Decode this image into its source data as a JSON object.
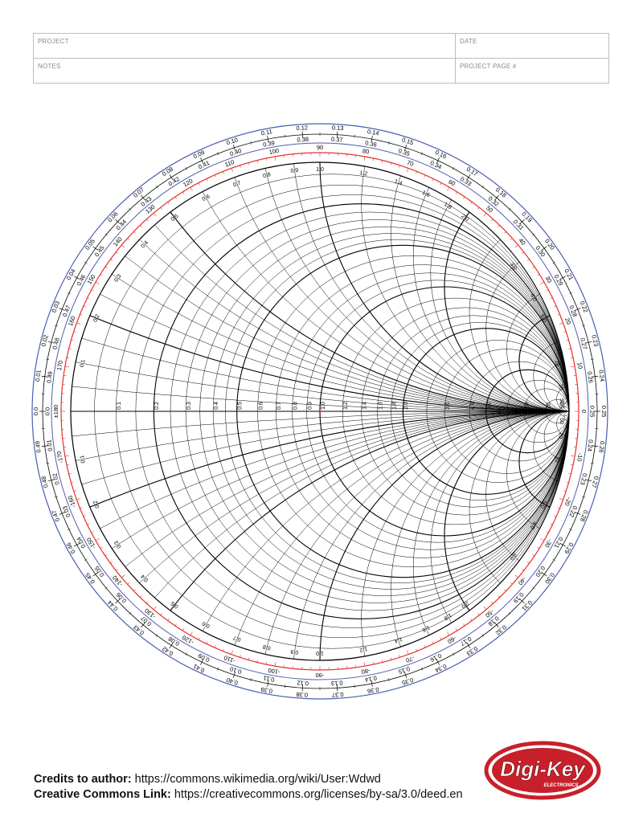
{
  "header": {
    "project_label": "PROJECT",
    "date_label": "DATE",
    "notes_label": "NOTES",
    "project_page_label": "PROJECT PAGE  #"
  },
  "footer": {
    "credits_label": "Credits to author:",
    "credits_url": "https://commons.wikimedia.org/wiki/User:Wdwd",
    "cc_label": "Creative Commons Link:",
    "cc_url": "https://creativecommons.org/licenses/by-sa/3.0/deed.en",
    "logo_text": "Digi-Key",
    "logo_subtext": "ELECTRONICS"
  },
  "colors": {
    "grid": "#000000",
    "scale_ring": "#4a5fb0",
    "angle_ring": "#e0312b",
    "logo_red": "#c8202a"
  },
  "chart_data": {
    "type": "smith-chart",
    "resistance_labels": [
      0.1,
      0.2,
      0.3,
      0.4,
      0.5,
      0.6,
      0.7,
      0.8,
      0.9,
      1.0,
      1.2,
      1.4,
      1.6,
      1.8,
      2.0,
      3.0,
      4.0,
      5.0,
      10,
      20,
      50
    ],
    "reactance_labels": [
      0.1,
      0.2,
      0.3,
      0.4,
      0.5,
      0.6,
      0.7,
      0.8,
      0.9,
      1.0,
      1.2,
      1.4,
      1.6,
      1.8,
      2.0,
      3.0,
      4.0,
      5.0,
      10,
      20,
      50
    ],
    "resistance_circles": [
      0.05,
      0.1,
      0.15,
      0.2,
      0.25,
      0.3,
      0.35,
      0.4,
      0.45,
      0.5,
      0.6,
      0.7,
      0.8,
      0.9,
      1.0,
      1.2,
      1.4,
      1.6,
      1.8,
      2.0,
      2.5,
      3,
      4,
      5,
      7,
      10,
      20,
      50
    ],
    "reactance_arcs": [
      0.05,
      0.1,
      0.15,
      0.2,
      0.25,
      0.3,
      0.35,
      0.4,
      0.45,
      0.5,
      0.6,
      0.7,
      0.8,
      0.9,
      1.0,
      1.2,
      1.4,
      1.6,
      1.8,
      2.0,
      2.5,
      3,
      4,
      5,
      7,
      10,
      20,
      50
    ],
    "wavelength_scale": {
      "min": 0.0,
      "max": 0.5,
      "step": 0.01
    },
    "angle_scale": {
      "min": -180,
      "max": 180,
      "step": 10
    }
  }
}
